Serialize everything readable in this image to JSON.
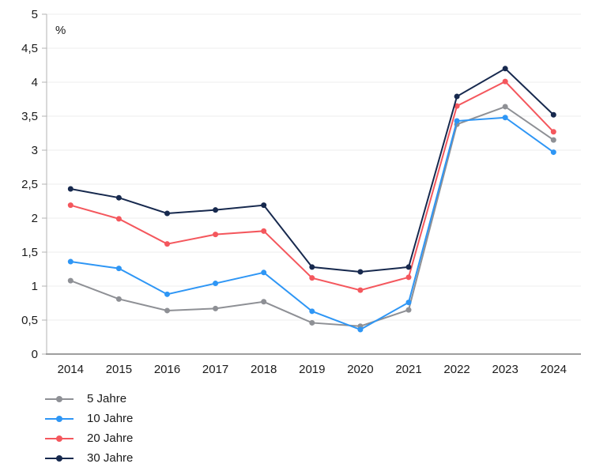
{
  "chart_data": {
    "type": "line",
    "title": "",
    "ylabel": "%",
    "xlabel": "",
    "ylim": [
      0,
      5
    ],
    "grid": "horizontal",
    "legend_position": "bottom-left",
    "y_ticks": [
      "0",
      "0,5",
      "1",
      "1,5",
      "2",
      "2,5",
      "3",
      "3,5",
      "4",
      "4,5",
      "5"
    ],
    "categories": [
      "2014",
      "2015",
      "2016",
      "2017",
      "2018",
      "2019",
      "2020",
      "2021",
      "2022",
      "2023",
      "2024"
    ],
    "series": [
      {
        "name": "5 Jahre",
        "color": "#8e9095",
        "values": [
          1.08,
          0.81,
          0.64,
          0.67,
          0.77,
          0.46,
          0.41,
          0.65,
          3.38,
          3.64,
          3.15
        ]
      },
      {
        "name": "10 Jahre",
        "color": "#2e96f5",
        "values": [
          1.36,
          1.26,
          0.88,
          1.04,
          1.2,
          0.63,
          0.36,
          0.76,
          3.43,
          3.48,
          2.97
        ]
      },
      {
        "name": "20 Jahre",
        "color": "#f4575d",
        "values": [
          2.19,
          1.99,
          1.62,
          1.76,
          1.81,
          1.12,
          0.94,
          1.13,
          3.65,
          4.01,
          3.27
        ]
      },
      {
        "name": "30 Jahre",
        "color": "#17294e",
        "values": [
          2.43,
          2.3,
          2.07,
          2.12,
          2.19,
          1.28,
          1.21,
          1.28,
          3.79,
          4.2,
          3.52
        ]
      }
    ],
    "colors": {
      "grid": "#ececec",
      "axis_y": "#b3b3b3",
      "axis_x": "#9e9e9e",
      "text": "#1a1a1a"
    }
  }
}
